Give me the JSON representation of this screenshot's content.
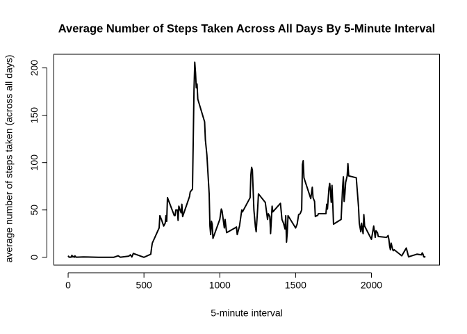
{
  "chart_data": {
    "type": "line",
    "title": "Average Number of Steps Taken Across All Days By 5-Minute Interval",
    "x_label": "5-minute interval",
    "y_label": "average number of steps taken (across all days)",
    "x": [
      0,
      5,
      10,
      15,
      20,
      25,
      30,
      35,
      40,
      45,
      50,
      55,
      100,
      200,
      300,
      330,
      340,
      345,
      350,
      400,
      410,
      420,
      430,
      440,
      500,
      530,
      545,
      550,
      555,
      600,
      605,
      615,
      630,
      640,
      645,
      650,
      655,
      700,
      705,
      710,
      720,
      725,
      730,
      740,
      745,
      750,
      755,
      800,
      805,
      820,
      830,
      835,
      840,
      845,
      850,
      855,
      900,
      905,
      915,
      930,
      935,
      940,
      945,
      950,
      955,
      1000,
      1010,
      1015,
      1030,
      1035,
      1045,
      1100,
      1110,
      1115,
      1130,
      1145,
      1150,
      1200,
      1205,
      1210,
      1215,
      1225,
      1235,
      1240,
      1250,
      1255,
      1300,
      1315,
      1320,
      1330,
      1335,
      1345,
      1350,
      1400,
      1410,
      1420,
      1430,
      1435,
      1440,
      1445,
      1450,
      1500,
      1510,
      1520,
      1530,
      1540,
      1545,
      1550,
      1555,
      1600,
      1610,
      1615,
      1625,
      1630,
      1640,
      1645,
      1650,
      1700,
      1705,
      1710,
      1720,
      1725,
      1730,
      1735,
      1740,
      1745,
      1750,
      1800,
      1810,
      1815,
      1820,
      1825,
      1830,
      1840,
      1845,
      1850,
      1900,
      1915,
      1920,
      1930,
      1935,
      1940,
      1945,
      1950,
      1955,
      2000,
      2015,
      2020,
      2025,
      2030,
      2040,
      2045,
      2100,
      2110,
      2115,
      2120,
      2125,
      2130,
      2140,
      2145,
      2150,
      2200,
      2230,
      2245,
      2300,
      2330,
      2335,
      2340,
      2345,
      2350,
      2355
    ],
    "series": [
      {
        "name": "steps",
        "color": "#000000",
        "values": [
          1.7,
          0.3,
          0.1,
          0.2,
          0.1,
          2.1,
          0.5,
          0.9,
          0,
          1.5,
          0.3,
          0.1,
          0.4,
          0,
          0,
          1.6,
          0.5,
          0.1,
          0.2,
          1.2,
          2.6,
          0.3,
          4.1,
          3.5,
          0,
          2.2,
          3.3,
          9.8,
          15,
          31,
          44,
          40,
          33,
          36,
          44,
          38,
          63,
          44,
          44,
          50,
          50,
          39,
          54,
          49,
          47,
          56,
          43,
          64,
          69,
          72,
          177,
          206,
          195,
          179,
          183,
          167,
          143,
          124,
          108,
          67,
          33,
          24,
          38,
          35,
          20,
          40,
          51,
          49,
          31,
          40,
          26,
          31,
          32,
          24,
          33,
          50,
          48,
          63,
          87,
          95,
          92,
          50,
          32,
          27,
          52,
          67,
          58,
          40,
          46,
          43,
          25,
          54,
          48,
          57,
          40,
          36,
          30,
          44,
          16,
          26,
          44,
          31,
          35,
          45,
          46,
          50,
          98,
          102,
          84,
          62,
          74,
          63,
          59,
          43,
          44,
          44,
          46,
          46,
          56,
          51,
          73,
          78,
          69,
          58,
          76,
          57,
          35,
          40,
          74,
          85,
          59,
          67,
          79,
          86,
          99,
          86,
          84,
          53,
          36,
          27,
          36,
          30,
          25,
          45,
          33,
          19,
          33,
          27,
          21,
          28,
          26,
          22,
          21,
          23,
          19,
          12,
          8,
          15,
          8,
          7,
          8,
          1.6,
          9.8,
          0.5,
          3.3,
          2.6,
          4.7,
          3.3,
          0.6,
          0.2,
          1.1
        ]
      }
    ],
    "xlim": [
      -94.2,
      2449.2
    ],
    "ylim": [
      -8.25,
      214.4
    ],
    "xticks": [
      0,
      500,
      1000,
      1500,
      2000
    ],
    "yticks": [
      0,
      50,
      100,
      150,
      200
    ]
  }
}
